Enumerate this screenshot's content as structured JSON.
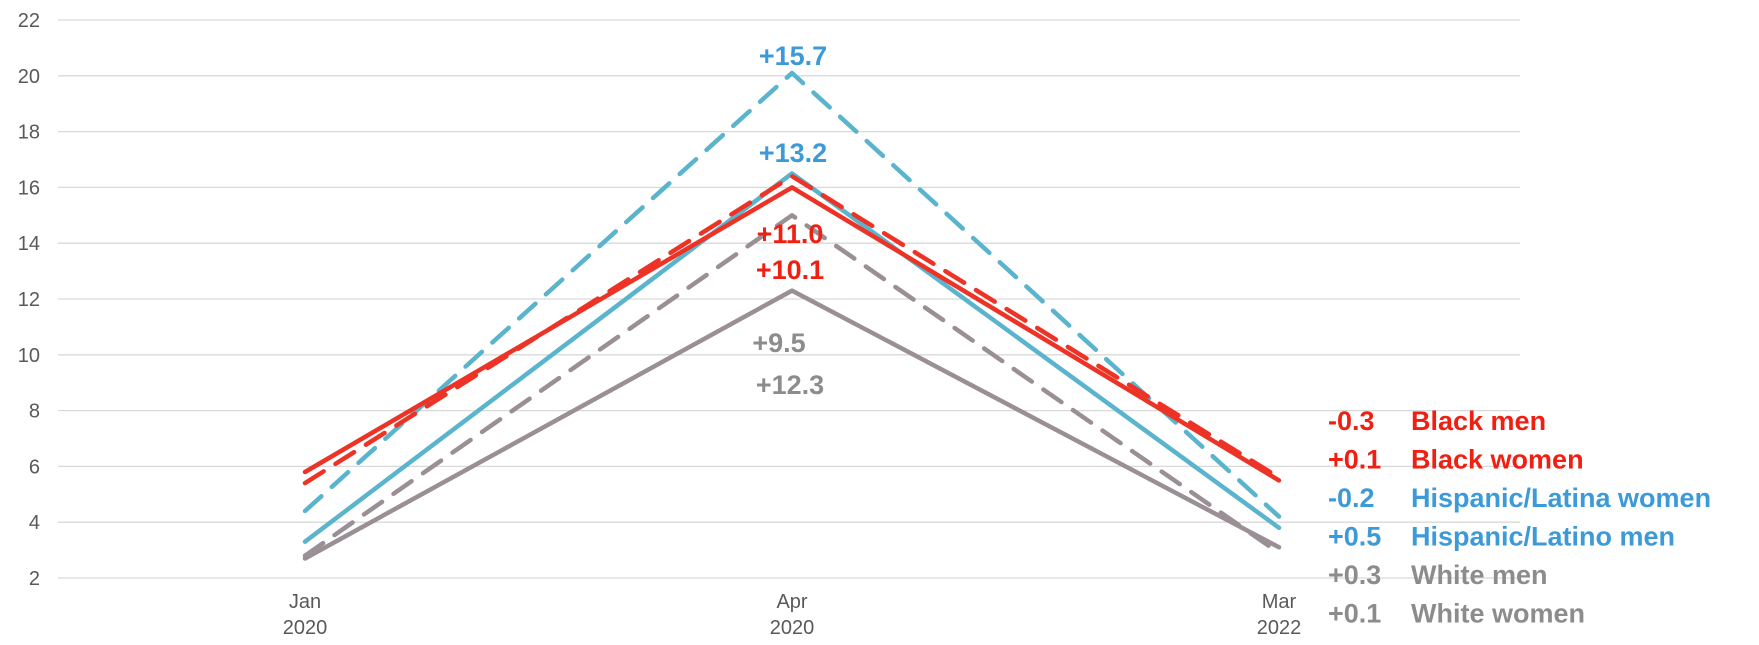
{
  "chart_data": {
    "type": "line",
    "categories": [
      "Jan 2020",
      "Apr 2020",
      "Mar 2022"
    ],
    "x_tick_labels": [
      [
        "Jan",
        "2020"
      ],
      [
        "Apr",
        "2020"
      ],
      [
        "Mar",
        "2022"
      ]
    ],
    "y_ticks": [
      "2",
      "4",
      "6",
      "8",
      "10",
      "12",
      "14",
      "16",
      "18",
      "20",
      "22"
    ],
    "ylim": [
      2,
      22
    ],
    "grid": true,
    "series": [
      {
        "values": [
          5.8,
          16.0,
          5.5
        ],
        "color": "#ec3325",
        "dash": "solid"
      },
      {
        "values": [
          5.4,
          16.4,
          5.6
        ],
        "color": "#ec3325",
        "dash": "dashed"
      },
      {
        "values": [
          3.3,
          16.5,
          3.8
        ],
        "color": "#5bb4cd",
        "dash": "solid"
      },
      {
        "values": [
          4.4,
          20.1,
          4.2
        ],
        "color": "#5bb4cd",
        "dash": "dashed"
      },
      {
        "values": [
          2.7,
          12.3,
          3.1
        ],
        "color": "#9b8f96",
        "dash": "solid"
      },
      {
        "values": [
          2.8,
          15.0,
          2.9
        ],
        "color": "#9b8f96",
        "dash": "dashed"
      }
    ],
    "annotations": [
      {
        "text": "+15.7",
        "color": "#3d9ad8"
      },
      {
        "text": "+13.2",
        "color": "#3d9ad8"
      },
      {
        "text": "+11.0",
        "color": "#f01f12"
      },
      {
        "text": "+10.1",
        "color": "#f01f12"
      },
      {
        "text": "+9.5",
        "color": "#8c8c8c"
      },
      {
        "text": "+12.3",
        "color": "#8c8c8c"
      }
    ],
    "legend": [
      {
        "value": "-0.3",
        "label": "Black men",
        "color": "#f01f12"
      },
      {
        "value": "+0.1",
        "label": "Black women",
        "color": "#f01f12"
      },
      {
        "value": "-0.2",
        "label": "Hispanic/Latina women",
        "color": "#3d9ad8"
      },
      {
        "value": "+0.5",
        "label": "Hispanic/Latino men",
        "color": "#3d9ad8"
      },
      {
        "value": "+0.3",
        "label": "White men",
        "color": "#8c8c8c"
      },
      {
        "value": "+0.1",
        "label": "White women",
        "color": "#8c8c8c"
      }
    ]
  }
}
